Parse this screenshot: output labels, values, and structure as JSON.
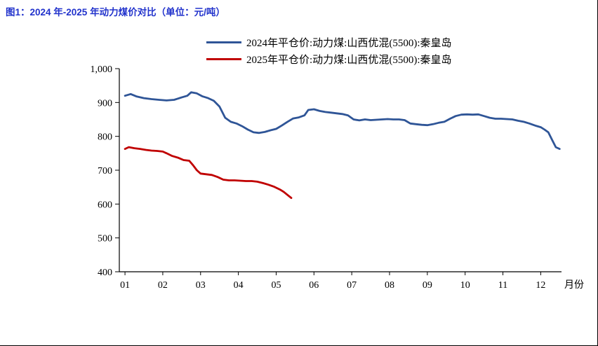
{
  "figure": {
    "title": "图1：2024 年-2025 年动力煤价对比（单位：元/吨）"
  },
  "chart_data": {
    "type": "line",
    "title": "",
    "xlabel": "月份",
    "ylabel": "",
    "grid": false,
    "legend_position": "top",
    "ylim": [
      400,
      1000
    ],
    "yticks": [
      400,
      500,
      600,
      700,
      800,
      900,
      1000
    ],
    "ytick_labels": [
      "400",
      "500",
      "600",
      "700",
      "800",
      "900",
      "1,000"
    ],
    "xlim": [
      0.85,
      12.55
    ],
    "xticks": [
      1,
      2,
      3,
      4,
      5,
      6,
      7,
      8,
      9,
      10,
      11,
      12
    ],
    "xtick_labels": [
      "01",
      "02",
      "03",
      "04",
      "05",
      "06",
      "07",
      "08",
      "09",
      "10",
      "11",
      "12"
    ],
    "series": [
      {
        "name": "2024年平仓价:动力煤:山西优混(5500):秦皇岛",
        "color": "#2F5597",
        "x": [
          1.0,
          1.15,
          1.3,
          1.5,
          1.7,
          1.9,
          2.1,
          2.3,
          2.5,
          2.65,
          2.75,
          2.9,
          3.05,
          3.2,
          3.35,
          3.5,
          3.65,
          3.8,
          3.95,
          4.1,
          4.25,
          4.4,
          4.55,
          4.7,
          4.85,
          5.0,
          5.15,
          5.3,
          5.45,
          5.6,
          5.75,
          5.85,
          6.0,
          6.15,
          6.3,
          6.45,
          6.6,
          6.75,
          6.9,
          7.05,
          7.2,
          7.35,
          7.5,
          7.65,
          7.8,
          7.95,
          8.1,
          8.25,
          8.4,
          8.55,
          8.7,
          8.85,
          9.0,
          9.15,
          9.3,
          9.45,
          9.6,
          9.75,
          9.9,
          10.05,
          10.2,
          10.35,
          10.5,
          10.65,
          10.8,
          10.95,
          11.1,
          11.25,
          11.4,
          11.55,
          11.7,
          11.85,
          12.0,
          12.1,
          12.2,
          12.3,
          12.4,
          12.5
        ],
        "values": [
          920,
          925,
          918,
          913,
          910,
          908,
          906,
          908,
          915,
          920,
          930,
          927,
          918,
          913,
          905,
          888,
          855,
          843,
          838,
          830,
          820,
          812,
          810,
          813,
          818,
          822,
          832,
          843,
          853,
          856,
          862,
          878,
          880,
          875,
          872,
          870,
          868,
          866,
          862,
          850,
          847,
          850,
          848,
          849,
          850,
          851,
          850,
          850,
          848,
          838,
          836,
          834,
          833,
          836,
          840,
          843,
          852,
          860,
          864,
          865,
          864,
          865,
          860,
          855,
          852,
          852,
          851,
          850,
          846,
          843,
          838,
          832,
          827,
          820,
          812,
          790,
          768,
          763
        ]
      },
      {
        "name": "2025年平仓价:动力煤:山西优混(5500):秦皇岛",
        "color": "#C00000",
        "x": [
          1.0,
          1.1,
          1.25,
          1.4,
          1.55,
          1.7,
          1.85,
          2.0,
          2.1,
          2.25,
          2.4,
          2.55,
          2.7,
          2.8,
          2.9,
          3.0,
          3.15,
          3.3,
          3.45,
          3.6,
          3.75,
          3.9,
          4.05,
          4.2,
          4.35,
          4.5,
          4.65,
          4.8,
          4.95,
          5.1,
          5.2,
          5.3,
          5.4
        ],
        "values": [
          763,
          768,
          765,
          763,
          760,
          758,
          757,
          755,
          750,
          742,
          737,
          730,
          728,
          715,
          700,
          690,
          688,
          686,
          680,
          672,
          670,
          670,
          669,
          668,
          668,
          666,
          662,
          657,
          651,
          643,
          636,
          627,
          618
        ]
      }
    ]
  }
}
